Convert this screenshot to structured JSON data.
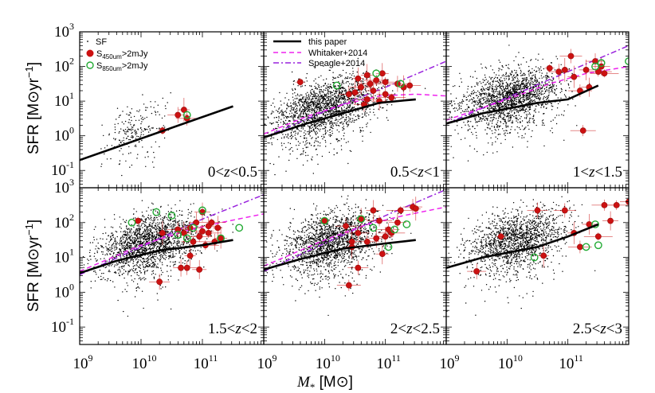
{
  "chart_data": {
    "type": "scatter",
    "xlabel": "M* [M⊙]",
    "xlabel_var": "M",
    "xlabel_sub": "*",
    "xlabel_unit": "[M⊙]",
    "ylabel": "SFR [M⊙yr⁻¹]",
    "ylabel_text": "SFR",
    "ylabel_unit": "[M⊙yr",
    "ylabel_exp": "−1",
    "ylabel_close": "]",
    "xscale": "log",
    "yscale": "log",
    "xlim_log10": [
      9,
      12
    ],
    "ylim_log10": [
      -1.5,
      3
    ],
    "x_ticks": [
      {
        "base": "10",
        "exp": "9",
        "log": 9
      },
      {
        "base": "10",
        "exp": "10",
        "log": 10
      },
      {
        "base": "10",
        "exp": "11",
        "log": 11
      }
    ],
    "y_ticks": [
      {
        "base": "10",
        "exp": "-1",
        "log": -1
      },
      {
        "base": "10",
        "exp": "0",
        "log": 0
      },
      {
        "base": "10",
        "exp": "1",
        "log": 1
      },
      {
        "base": "10",
        "exp": "2",
        "log": 2
      },
      {
        "base": "10",
        "exp": "3",
        "log": 3
      }
    ],
    "legend_sources": [
      {
        "label": "SF",
        "marker": "dot",
        "color": "#000000"
      },
      {
        "label": "S",
        "sub": "450um",
        "rest": ">2mJy",
        "marker": "filled-circle",
        "color": "#cc1111"
      },
      {
        "label": "S",
        "sub": "850um",
        "rest": ">2mJy",
        "marker": "open-circle",
        "color": "#22aa33"
      }
    ],
    "legend_lines": [
      {
        "label": "this paper",
        "color": "#000000",
        "dash": "solid"
      },
      {
        "label": "Whitaker+2014",
        "color": "#ee22ee",
        "dash": "dashed"
      },
      {
        "label": "Speagle+2014",
        "color": "#9922dd",
        "dash": "dashdot"
      }
    ],
    "panels": [
      {
        "label_left": "0<",
        "label_var": "z",
        "label_right": "<0.5",
        "seed": 11,
        "sf_count": 220,
        "sf_center": 9.9,
        "sf_spread": 0.25,
        "this_paper": [
          [
            9,
            -0.7
          ],
          [
            11.5,
            0.85
          ]
        ],
        "whitaker": [],
        "speagle": [],
        "red": [
          [
            10.35,
            0.15
          ],
          [
            10.6,
            0.6
          ],
          [
            10.7,
            0.75
          ],
          [
            10.75,
            0.5
          ]
        ],
        "green": [
          [
            10.75,
            0.6
          ]
        ]
      },
      {
        "label_left": "0.5<",
        "label_var": "z",
        "label_right": "<1",
        "seed": 23,
        "sf_count": 1900,
        "sf_center": 10.0,
        "sf_spread": 0.4,
        "this_paper": [
          [
            9,
            -0.05
          ],
          [
            9.7,
            0.35
          ],
          [
            10.3,
            0.65
          ],
          [
            10.9,
            0.95
          ],
          [
            11.5,
            1.05
          ]
        ],
        "whitaker": [
          [
            9,
            0.05
          ],
          [
            9.7,
            0.55
          ],
          [
            10.3,
            0.9
          ],
          [
            10.9,
            1.15
          ],
          [
            11.5,
            1.2
          ],
          [
            12,
            1.15
          ]
        ],
        "speagle": [
          [
            9,
            -0.05
          ],
          [
            10,
            0.7
          ],
          [
            11,
            1.4
          ],
          [
            12,
            2.15
          ]
        ],
        "red": [
          [
            9.6,
            1.55
          ],
          [
            10.4,
            1.2
          ],
          [
            10.5,
            1.25
          ],
          [
            10.6,
            1.4
          ],
          [
            10.7,
            1.75
          ],
          [
            10.75,
            1.5
          ],
          [
            10.8,
            1.3
          ],
          [
            10.85,
            1.6
          ],
          [
            10.9,
            1.0
          ],
          [
            11.0,
            1.55
          ],
          [
            11.0,
            1.2
          ],
          [
            11.1,
            1.1
          ],
          [
            11.2,
            1.5
          ],
          [
            11.3,
            1.4
          ],
          [
            10.65,
            0.9
          ],
          [
            10.55,
            1.65
          ],
          [
            11.4,
            1.45
          ],
          [
            10.95,
            1.8
          ],
          [
            10.7,
            1.05
          ]
        ],
        "green": [
          [
            10.2,
            1.45
          ],
          [
            10.85,
            1.8
          ],
          [
            11.25,
            1.5
          ]
        ]
      },
      {
        "label_left": "1<",
        "label_var": "z",
        "label_right": "<1.5",
        "seed": 37,
        "sf_count": 1900,
        "sf_center": 10.05,
        "sf_spread": 0.4,
        "this_paper": [
          [
            9,
            0.35
          ],
          [
            9.6,
            0.65
          ],
          [
            10.5,
            0.95
          ],
          [
            11,
            1.05
          ],
          [
            11.5,
            1.45
          ]
        ],
        "whitaker": [
          [
            9,
            0.45
          ],
          [
            10,
            1.05
          ],
          [
            10.7,
            1.5
          ],
          [
            11.3,
            1.8
          ],
          [
            12,
            2.0
          ]
        ],
        "speagle": [
          [
            9,
            0.35
          ],
          [
            10,
            1.1
          ],
          [
            11,
            1.85
          ],
          [
            12,
            2.6
          ]
        ],
        "red": [
          [
            10.7,
            1.95
          ],
          [
            10.85,
            1.85
          ],
          [
            10.95,
            1.9
          ],
          [
            11.05,
            2.3
          ],
          [
            11.1,
            1.7
          ],
          [
            11.2,
            1.3
          ],
          [
            11.3,
            1.9
          ],
          [
            11.25,
            0.15
          ],
          [
            11.35,
            1.4
          ],
          [
            11.5,
            1.85
          ],
          [
            11.55,
            2.0
          ],
          [
            11.6,
            1.8
          ],
          [
            11.45,
            2.15
          ]
        ],
        "green": [
          [
            11.45,
            2.0
          ],
          [
            11.55,
            2.1
          ],
          [
            12.0,
            2.15
          ]
        ]
      },
      {
        "label_left": "1.5<",
        "label_var": "z",
        "label_right": "<2",
        "seed": 41,
        "sf_count": 1900,
        "sf_center": 10.1,
        "sf_spread": 0.4,
        "this_paper": [
          [
            9,
            0.55
          ],
          [
            9.6,
            0.9
          ],
          [
            10.3,
            1.2
          ],
          [
            11,
            1.35
          ],
          [
            11.5,
            1.5
          ]
        ],
        "whitaker": [
          [
            9,
            0.6
          ],
          [
            10,
            1.35
          ],
          [
            10.7,
            1.75
          ],
          [
            11.3,
            2.0
          ],
          [
            12,
            2.25
          ]
        ],
        "speagle": [
          [
            9,
            0.5
          ],
          [
            10,
            1.3
          ],
          [
            11,
            2.1
          ],
          [
            12,
            2.8
          ]
        ],
        "red": [
          [
            9.95,
            2.05
          ],
          [
            10.3,
            0.3
          ],
          [
            10.35,
            1.7
          ],
          [
            10.6,
            1.8
          ],
          [
            10.7,
            1.7
          ],
          [
            10.8,
            1.85
          ],
          [
            10.9,
            2.0
          ],
          [
            10.95,
            1.6
          ],
          [
            11.0,
            2.3
          ],
          [
            11.05,
            1.35
          ],
          [
            11.1,
            1.9
          ],
          [
            11.15,
            2.0
          ],
          [
            11.2,
            1.45
          ],
          [
            11.25,
            1.85
          ],
          [
            10.75,
            0.7
          ],
          [
            10.8,
            1.05
          ],
          [
            11.0,
            1.75
          ],
          [
            11.3,
            1.55
          ],
          [
            10.85,
            1.45
          ],
          [
            10.95,
            0.65
          ],
          [
            11.1,
            1.7
          ],
          [
            10.65,
            0.7
          ]
        ],
        "green": [
          [
            9.85,
            2.0
          ],
          [
            10.25,
            2.3
          ],
          [
            10.5,
            2.2
          ],
          [
            10.6,
            1.65
          ],
          [
            10.75,
            1.55
          ],
          [
            10.85,
            1.85
          ],
          [
            11.0,
            2.35
          ],
          [
            11.3,
            1.55
          ],
          [
            11.6,
            1.85
          ]
        ]
      },
      {
        "label_left": "2<",
        "label_var": "z",
        "label_right": "<2.5",
        "seed": 53,
        "sf_count": 1800,
        "sf_center": 10.1,
        "sf_spread": 0.4,
        "this_paper": [
          [
            9,
            0.65
          ],
          [
            9.6,
            0.95
          ],
          [
            10.3,
            1.25
          ],
          [
            11,
            1.4
          ],
          [
            11.5,
            1.5
          ]
        ],
        "whitaker": [
          [
            9,
            0.75
          ],
          [
            10,
            1.5
          ],
          [
            10.7,
            1.95
          ],
          [
            11.3,
            2.2
          ],
          [
            12,
            2.45
          ]
        ],
        "speagle": [
          [
            9,
            0.6
          ],
          [
            10,
            1.4
          ],
          [
            11,
            2.2
          ],
          [
            12,
            2.95
          ]
        ],
        "red": [
          [
            10.0,
            2.05
          ],
          [
            10.35,
            1.9
          ],
          [
            10.45,
            1.45
          ],
          [
            10.55,
            1.7
          ],
          [
            10.6,
            2.1
          ],
          [
            10.7,
            1.45
          ],
          [
            10.8,
            2.35
          ],
          [
            10.9,
            2.05
          ],
          [
            11.0,
            1.6
          ],
          [
            11.1,
            1.7
          ],
          [
            11.2,
            2.0
          ],
          [
            11.25,
            2.35
          ],
          [
            11.45,
            2.45
          ],
          [
            11.5,
            2.4
          ],
          [
            10.55,
            0.7
          ],
          [
            10.45,
            1.3
          ],
          [
            11.05,
            1.8
          ],
          [
            10.95,
            1.1
          ],
          [
            10.4,
            0.2
          ],
          [
            10.85,
            1.55
          ]
        ],
        "green": [
          [
            10.0,
            2.05
          ],
          [
            10.6,
            2.1
          ],
          [
            10.8,
            1.85
          ],
          [
            11.05,
            1.3
          ],
          [
            11.15,
            1.8
          ],
          [
            11.35,
            1.95
          ]
        ]
      },
      {
        "label_left": "2.5<",
        "label_var": "z",
        "label_right": "<3",
        "seed": 67,
        "sf_count": 1600,
        "sf_center": 10.15,
        "sf_spread": 0.38,
        "this_paper": [
          [
            9,
            0.7
          ],
          [
            9.6,
            1.0
          ],
          [
            10.5,
            1.3
          ],
          [
            11,
            1.6
          ],
          [
            11.5,
            1.95
          ]
        ],
        "whitaker": [],
        "speagle": [],
        "red": [
          [
            9.9,
            1.6
          ],
          [
            10.5,
            2.35
          ],
          [
            10.6,
            1.05
          ],
          [
            10.95,
            2.35
          ],
          [
            11.1,
            1.7
          ],
          [
            11.2,
            1.3
          ],
          [
            11.35,
            1.95
          ],
          [
            11.6,
            2.5
          ],
          [
            11.7,
            2.05
          ],
          [
            11.8,
            2.5
          ],
          [
            12.0,
            2.6
          ],
          [
            11.5,
            1.6
          ],
          [
            9.5,
            0.6
          ]
        ],
        "green": [
          [
            10.45,
            1.0
          ],
          [
            11.3,
            1.3
          ],
          [
            11.5,
            1.35
          ],
          [
            11.45,
            1.95
          ]
        ]
      }
    ]
  }
}
